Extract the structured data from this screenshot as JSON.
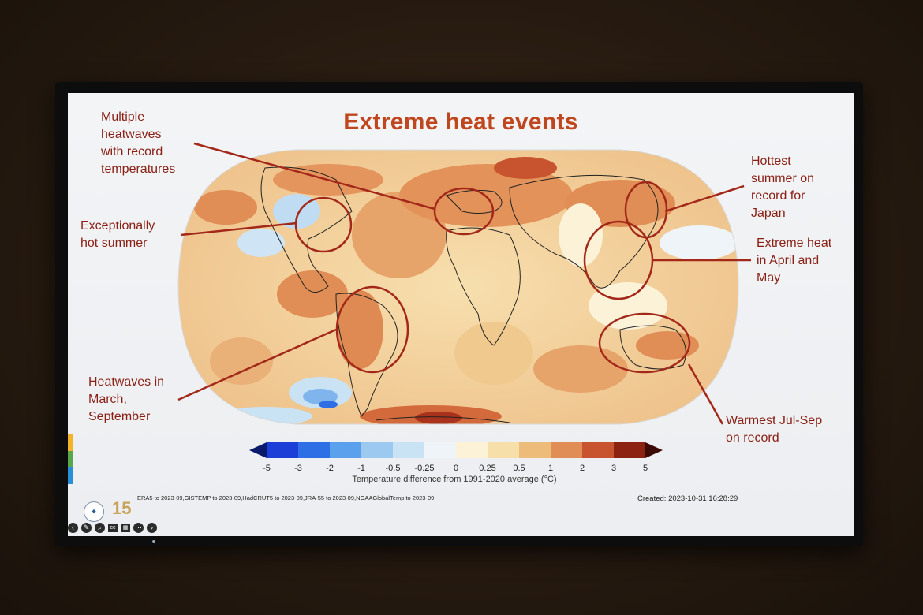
{
  "slide": {
    "title": "Extreme heat events",
    "annotations": [
      {
        "id": "multiple-heatwaves",
        "text": "Multiple\nheatwaves\nwith record\ntemperatures"
      },
      {
        "id": "hot-summer",
        "text": "Exceptionally\nhot summer"
      },
      {
        "id": "heatwaves-march",
        "text": "Heatwaves in\nMarch,\nSeptember"
      },
      {
        "id": "hottest-japan",
        "text": "Hottest\nsummer on\nrecord for\nJapan"
      },
      {
        "id": "extreme-april",
        "text": "Extreme heat\nin April and\nMay"
      },
      {
        "id": "warmest-julsep",
        "text": "Warmest Jul-Sep\non record"
      }
    ],
    "legend": {
      "ticks": [
        "-5",
        "-3",
        "-2",
        "-1",
        "-0.5",
        "-0.25",
        "0",
        "0.25",
        "0.5",
        "1",
        "2",
        "3",
        "5"
      ],
      "colors": [
        "#1c3fd8",
        "#2f6fe6",
        "#5aa0ec",
        "#9bc9f0",
        "#c9e3f5",
        "#eef4f7",
        "#fbf2d8",
        "#f6dfa8",
        "#eebc7a",
        "#e08e55",
        "#c8542f",
        "#8c2312"
      ],
      "caption": "Temperature difference from 1991-2020 average (°C)"
    },
    "sources": "ERA5 to 2023-09,GISTEMP to 2023-09,HadCRUT5 to 2023-09,JRA-55 to 2023-09,NOAAGlobalTemp to 2023-09",
    "created": "Created: 2023-10-31 16:28:29",
    "logos": {
      "wmo": "wmo-logo",
      "anniversary": "15"
    }
  }
}
